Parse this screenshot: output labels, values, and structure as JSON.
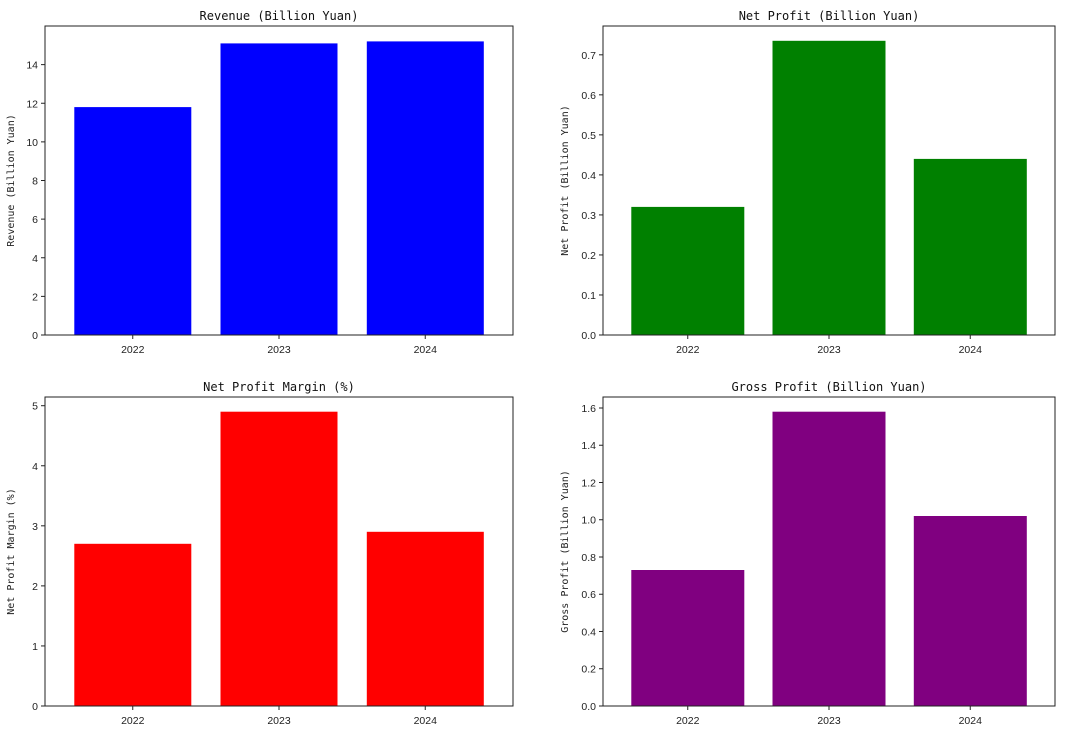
{
  "chart_data": [
    {
      "type": "bar",
      "title": "Revenue (Billion Yuan)",
      "xlabel": "",
      "ylabel": "Revenue (Billion Yuan)",
      "categories": [
        "2022",
        "2023",
        "2024"
      ],
      "values": [
        11.8,
        15.1,
        15.2
      ],
      "ylim": [
        0,
        16
      ],
      "yticks": [
        0,
        2,
        4,
        6,
        8,
        10,
        12,
        14
      ],
      "ytick_labels": [
        "0",
        "2",
        "4",
        "6",
        "8",
        "10",
        "12",
        "14"
      ],
      "color": "#0000ff",
      "grid": false
    },
    {
      "type": "bar",
      "title": "Net Profit (Billion Yuan)",
      "xlabel": "",
      "ylabel": "Net Profit (Billion Yuan)",
      "categories": [
        "2022",
        "2023",
        "2024"
      ],
      "values": [
        0.32,
        0.735,
        0.44
      ],
      "ylim": [
        0,
        0.772
      ],
      "yticks": [
        0,
        0.1,
        0.2,
        0.3,
        0.4,
        0.5,
        0.6,
        0.7
      ],
      "ytick_labels": [
        "0.0",
        "0.1",
        "0.2",
        "0.3",
        "0.4",
        "0.5",
        "0.6",
        "0.7"
      ],
      "color": "#008000",
      "grid": false
    },
    {
      "type": "bar",
      "title": "Net Profit Margin (%)",
      "xlabel": "",
      "ylabel": "Net Profit Margin (%)",
      "categories": [
        "2022",
        "2023",
        "2024"
      ],
      "values": [
        2.7,
        4.9,
        2.9
      ],
      "ylim": [
        0,
        5.145
      ],
      "yticks": [
        0,
        1,
        2,
        3,
        4,
        5
      ],
      "ytick_labels": [
        "0",
        "1",
        "2",
        "3",
        "4",
        "5"
      ],
      "color": "#ff0000",
      "grid": false
    },
    {
      "type": "bar",
      "title": "Gross Profit (Billion Yuan)",
      "xlabel": "",
      "ylabel": "Gross Profit (Billion Yuan)",
      "categories": [
        "2022",
        "2023",
        "2024"
      ],
      "values": [
        0.73,
        1.58,
        1.02
      ],
      "ylim": [
        0,
        1.659
      ],
      "yticks": [
        0,
        0.2,
        0.4,
        0.6,
        0.8,
        1.0,
        1.2,
        1.4,
        1.6
      ],
      "ytick_labels": [
        "0.0",
        "0.2",
        "0.4",
        "0.6",
        "0.8",
        "1.0",
        "1.2",
        "1.4",
        "1.6"
      ],
      "color": "#800080",
      "grid": false
    }
  ]
}
